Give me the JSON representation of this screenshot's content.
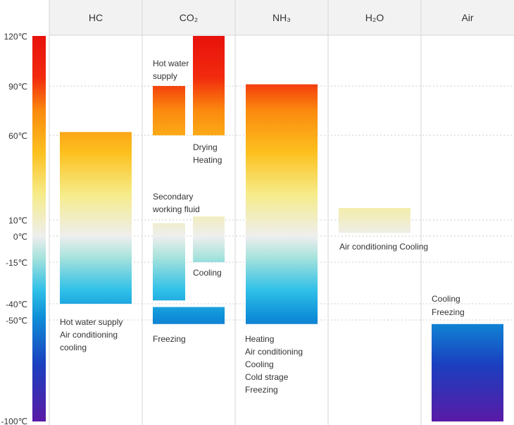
{
  "columns": [
    {
      "key": "hc",
      "label": "HC"
    },
    {
      "key": "co2",
      "label": "CO₂"
    },
    {
      "key": "nh3",
      "label": "NH₃"
    },
    {
      "key": "h2o",
      "label": "H₂O"
    },
    {
      "key": "air",
      "label": "Air"
    }
  ],
  "temperature_scale": {
    "min": -100,
    "max": 120,
    "ticks": [
      {
        "value": 120,
        "label": "120℃"
      },
      {
        "value": 90,
        "label": "90℃"
      },
      {
        "value": 60,
        "label": "60℃"
      },
      {
        "value": 10,
        "label": "10℃"
      },
      {
        "value": 0,
        "label": "0℃"
      },
      {
        "value": -15,
        "label": "-15℃"
      },
      {
        "value": -40,
        "label": "-40℃"
      },
      {
        "value": -50,
        "label": "-50℃"
      },
      {
        "value": -100,
        "label": "-100℃"
      }
    ],
    "dashed_gridlines_at": [
      90,
      60,
      10,
      0,
      -15,
      -40,
      -50
    ]
  },
  "ranges": [
    {
      "column": "hc",
      "slot": "full",
      "from": -40,
      "to": 62
    },
    {
      "column": "co2",
      "slot": "left",
      "from": 60,
      "to": 90
    },
    {
      "column": "co2",
      "slot": "right",
      "from": 60,
      "to": 120
    },
    {
      "column": "co2",
      "slot": "left",
      "from": -38,
      "to": 8
    },
    {
      "column": "co2",
      "slot": "right",
      "from": -15,
      "to": 12
    },
    {
      "column": "co2",
      "slot": "wide",
      "from": -52,
      "to": -42
    },
    {
      "column": "nh3",
      "slot": "full",
      "from": -52,
      "to": 91
    },
    {
      "column": "h2o",
      "slot": "full",
      "from": 2,
      "to": 17
    },
    {
      "column": "air",
      "slot": "full",
      "from": -100,
      "to": -52
    }
  ],
  "annotations": {
    "hc_use": [
      "Hot water supply",
      "Air conditioning",
      "cooling"
    ],
    "co2_hot_water": [
      "Hot water",
      "supply"
    ],
    "co2_drying": [
      "Drying",
      "Heating"
    ],
    "co2_secondary": [
      "Secondary",
      "working fluid"
    ],
    "co2_cooling": [
      "Cooling"
    ],
    "co2_freezing": [
      "Freezing"
    ],
    "nh3_use": [
      "Heating",
      "Air conditioning",
      "Cooling",
      "Cold strage",
      "Freezing"
    ],
    "h2o_use": [
      "Air conditioning Cooling"
    ],
    "air_use": [
      "Cooling",
      "Freezing"
    ]
  },
  "colors": {
    "header_bg": "#f2f2f2",
    "grid": "#d6d6d6",
    "dashed": "#cccccc",
    "text": "#333333",
    "scale_stops": [
      "#5a1aa6",
      "#1a3fbf",
      "#0e8fd8",
      "#2fc0e8",
      "#a9e3dc",
      "#eeeeee",
      "#f6ec8a",
      "#fcc01e",
      "#fb8a0e",
      "#f22a0e",
      "#e8120c"
    ]
  }
}
